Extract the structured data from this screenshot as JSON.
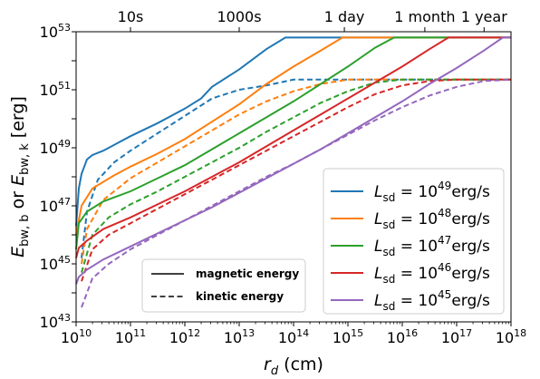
{
  "chart_data": {
    "type": "line",
    "xscale": "log",
    "yscale": "log",
    "xlim_exp": [
      10,
      18
    ],
    "ylim_exp": [
      43,
      53
    ],
    "xlabel": {
      "main": "r",
      "sub": "d",
      "unit": " (cm)"
    },
    "ylabel": {
      "a": "E",
      "a_sub": "bw, b",
      "mid": " or ",
      "b": "E",
      "b_sub": "bw, k",
      "unit": " [erg]"
    },
    "x_ticks": [
      "10",
      "11",
      "12",
      "13",
      "14",
      "15",
      "16",
      "17",
      "18"
    ],
    "y_ticks": [
      "43",
      "45",
      "47",
      "49",
      "51",
      "53"
    ],
    "tick_base": "10",
    "top_axis": [
      {
        "label": "10s",
        "r": 100000000000.0
      },
      {
        "label": "1000s",
        "r": 10000000000000.0
      },
      {
        "label": "1 day",
        "r": 860000000000000.0
      },
      {
        "label": "1 month",
        "r": 2.6e+16
      },
      {
        "label": "1 year",
        "r": 3.2e+17
      }
    ],
    "grid": false,
    "legend_placement": "right",
    "series": [
      {
        "name": {
          "pre": "L",
          "sub": "sd",
          "mid": " = 10",
          "sup": "49",
          "post": "erg/s"
        },
        "color": "#1f77b4",
        "magnetic": [
          [
            10.0,
            46.3
          ],
          [
            10.05,
            47.6
          ],
          [
            10.1,
            48.1
          ],
          [
            10.2,
            48.6
          ],
          [
            10.3,
            48.75
          ],
          [
            10.5,
            48.9
          ],
          [
            11.0,
            49.4
          ],
          [
            11.5,
            49.85
          ],
          [
            12.0,
            50.35
          ],
          [
            12.3,
            50.7
          ],
          [
            12.5,
            51.1
          ],
          [
            13.0,
            51.7
          ],
          [
            13.5,
            52.4
          ],
          [
            13.85,
            52.8
          ],
          [
            18.0,
            52.8
          ]
        ],
        "kinetic": [
          [
            10.1,
            45.2
          ],
          [
            10.2,
            46.8
          ],
          [
            10.4,
            47.9
          ],
          [
            10.7,
            48.5
          ],
          [
            11.0,
            48.9
          ],
          [
            11.5,
            49.5
          ],
          [
            12.0,
            50.1
          ],
          [
            12.5,
            50.7
          ],
          [
            13.0,
            51.0
          ],
          [
            13.5,
            51.15
          ],
          [
            14.0,
            51.35
          ],
          [
            18.0,
            51.35
          ]
        ]
      },
      {
        "name": {
          "pre": "L",
          "sub": "sd",
          "mid": " = 10",
          "sup": "48",
          "post": "erg/s"
        },
        "color": "#ff7f0e",
        "magnetic": [
          [
            10.0,
            46.0
          ],
          [
            10.1,
            47.0
          ],
          [
            10.3,
            47.6
          ],
          [
            10.7,
            48.05
          ],
          [
            11.0,
            48.35
          ],
          [
            11.5,
            48.8
          ],
          [
            12.0,
            49.3
          ],
          [
            12.5,
            49.9
          ],
          [
            13.0,
            50.5
          ],
          [
            13.5,
            51.2
          ],
          [
            14.0,
            51.8
          ],
          [
            14.5,
            52.35
          ],
          [
            14.9,
            52.8
          ],
          [
            18.0,
            52.8
          ]
        ],
        "kinetic": [
          [
            10.1,
            45.0
          ],
          [
            10.2,
            46.2
          ],
          [
            10.5,
            47.2
          ],
          [
            11.0,
            47.95
          ],
          [
            11.5,
            48.5
          ],
          [
            12.0,
            49.05
          ],
          [
            12.5,
            49.6
          ],
          [
            13.0,
            50.15
          ],
          [
            13.5,
            50.6
          ],
          [
            14.0,
            50.95
          ],
          [
            14.5,
            51.2
          ],
          [
            15.0,
            51.35
          ],
          [
            18.0,
            51.35
          ]
        ]
      },
      {
        "name": {
          "pre": "L",
          "sub": "sd",
          "mid": " = 10",
          "sup": "47",
          "post": "erg/s"
        },
        "color": "#2ca02c",
        "magnetic": [
          [
            10.0,
            45.5
          ],
          [
            10.05,
            46.4
          ],
          [
            10.2,
            46.8
          ],
          [
            10.5,
            47.15
          ],
          [
            11.0,
            47.5
          ],
          [
            11.5,
            47.95
          ],
          [
            12.0,
            48.4
          ],
          [
            12.5,
            48.95
          ],
          [
            13.0,
            49.5
          ],
          [
            13.5,
            50.05
          ],
          [
            14.0,
            50.6
          ],
          [
            14.5,
            51.2
          ],
          [
            15.0,
            51.8
          ],
          [
            15.5,
            52.45
          ],
          [
            15.85,
            52.8
          ],
          [
            18.0,
            52.8
          ]
        ],
        "kinetic": [
          [
            10.1,
            44.7
          ],
          [
            10.3,
            46.0
          ],
          [
            10.6,
            46.6
          ],
          [
            11.0,
            47.05
          ],
          [
            11.5,
            47.5
          ],
          [
            12.0,
            48.0
          ],
          [
            12.5,
            48.5
          ],
          [
            13.0,
            49.0
          ],
          [
            13.5,
            49.55
          ],
          [
            14.0,
            50.05
          ],
          [
            14.5,
            50.55
          ],
          [
            15.0,
            50.95
          ],
          [
            15.5,
            51.25
          ],
          [
            16.0,
            51.35
          ],
          [
            18.0,
            51.35
          ]
        ]
      },
      {
        "name": {
          "pre": "L",
          "sub": "sd",
          "mid": " = 10",
          "sup": "46",
          "post": "erg/s"
        },
        "color": "#d62728",
        "magnetic": [
          [
            10.0,
            45.2
          ],
          [
            10.05,
            45.55
          ],
          [
            10.2,
            45.8
          ],
          [
            10.5,
            46.2
          ],
          [
            11.0,
            46.6
          ],
          [
            11.5,
            47.05
          ],
          [
            12.0,
            47.5
          ],
          [
            12.5,
            48.0
          ],
          [
            13.0,
            48.5
          ],
          [
            13.5,
            49.05
          ],
          [
            14.0,
            49.6
          ],
          [
            14.5,
            50.15
          ],
          [
            15.0,
            50.7
          ],
          [
            15.5,
            51.25
          ],
          [
            16.0,
            51.8
          ],
          [
            16.5,
            52.4
          ],
          [
            16.85,
            52.8
          ],
          [
            18.0,
            52.8
          ]
        ],
        "kinetic": [
          [
            10.1,
            44.4
          ],
          [
            10.3,
            45.5
          ],
          [
            10.6,
            46.0
          ],
          [
            11.0,
            46.4
          ],
          [
            11.5,
            46.9
          ],
          [
            12.0,
            47.4
          ],
          [
            12.5,
            47.9
          ],
          [
            13.0,
            48.4
          ],
          [
            13.5,
            48.9
          ],
          [
            14.0,
            49.4
          ],
          [
            14.5,
            49.9
          ],
          [
            15.0,
            50.4
          ],
          [
            15.5,
            50.85
          ],
          [
            16.0,
            51.15
          ],
          [
            16.5,
            51.3
          ],
          [
            17.0,
            51.35
          ],
          [
            18.0,
            51.35
          ]
        ]
      },
      {
        "name": {
          "pre": "L",
          "sub": "sd",
          "mid": " = 10",
          "sup": "45",
          "post": "erg/s"
        },
        "color": "#9467bd",
        "magnetic": [
          [
            10.0,
            44.3
          ],
          [
            10.05,
            44.55
          ],
          [
            10.2,
            44.8
          ],
          [
            10.5,
            45.15
          ],
          [
            11.0,
            45.6
          ],
          [
            11.5,
            46.05
          ],
          [
            12.0,
            46.5
          ],
          [
            12.5,
            46.95
          ],
          [
            13.0,
            47.45
          ],
          [
            13.5,
            47.95
          ],
          [
            14.0,
            48.45
          ],
          [
            14.5,
            48.95
          ],
          [
            15.0,
            49.5
          ],
          [
            15.5,
            50.05
          ],
          [
            16.0,
            50.6
          ],
          [
            16.5,
            51.2
          ],
          [
            17.0,
            51.75
          ],
          [
            17.5,
            52.35
          ],
          [
            17.85,
            52.8
          ],
          [
            18.0,
            52.8
          ]
        ],
        "kinetic": [
          [
            10.1,
            43.5
          ],
          [
            10.3,
            44.5
          ],
          [
            10.6,
            45.0
          ],
          [
            11.0,
            45.5
          ],
          [
            11.5,
            46.0
          ],
          [
            12.0,
            46.5
          ],
          [
            12.5,
            47.0
          ],
          [
            13.0,
            47.5
          ],
          [
            13.5,
            48.0
          ],
          [
            14.0,
            48.45
          ],
          [
            14.5,
            48.95
          ],
          [
            15.0,
            49.45
          ],
          [
            15.5,
            49.95
          ],
          [
            16.0,
            50.4
          ],
          [
            16.5,
            50.8
          ],
          [
            17.0,
            51.1
          ],
          [
            17.5,
            51.3
          ],
          [
            18.0,
            51.35
          ]
        ]
      }
    ],
    "style_legend": [
      {
        "label": "magnetic energy",
        "dash": "solid"
      },
      {
        "label": "kinetic energy",
        "dash": "dashed"
      }
    ]
  }
}
